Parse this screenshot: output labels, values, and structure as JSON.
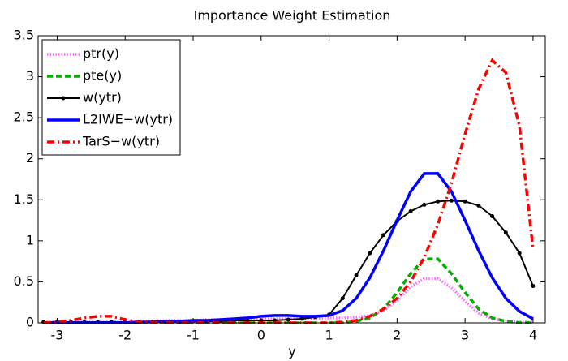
{
  "chart_data": {
    "type": "line",
    "title": "Importance Weight Estimation",
    "x_label": "y",
    "x": [
      -3.2,
      -3.0,
      -2.8,
      -2.6,
      -2.4,
      -2.2,
      -2.0,
      -1.8,
      -1.6,
      -1.4,
      -1.2,
      -1.0,
      -0.8,
      -0.6,
      -0.4,
      -0.2,
      0,
      0.2,
      0.4,
      0.6,
      0.8,
      1.0,
      1.2,
      1.4,
      1.6,
      1.8,
      2.0,
      2.2,
      2.4,
      2.6,
      2.8,
      3.0,
      3.2,
      3.4,
      3.6,
      3.8,
      4.0
    ],
    "series": [
      {
        "name": "ptr(y)",
        "color": "#ff66ff",
        "style": "dotted",
        "values": [
          0.01,
          0.01,
          0.01,
          0.01,
          0.01,
          0.01,
          0.02,
          0.02,
          0.02,
          0.03,
          0.03,
          0.03,
          0.04,
          0.04,
          0.04,
          0.05,
          0.05,
          0.05,
          0.05,
          0.05,
          0.05,
          0.06,
          0.06,
          0.07,
          0.09,
          0.15,
          0.27,
          0.44,
          0.54,
          0.54,
          0.43,
          0.26,
          0.12,
          0.05,
          0.02,
          0.01,
          0.01
        ]
      },
      {
        "name": "pte(y)",
        "color": "#00b000",
        "style": "dashed",
        "values": [
          0,
          0,
          0,
          0,
          0,
          0,
          0,
          0,
          0,
          0,
          0,
          0,
          0,
          0,
          0,
          0,
          0,
          0,
          0,
          0,
          0,
          0,
          0,
          0.02,
          0.06,
          0.17,
          0.37,
          0.6,
          0.78,
          0.78,
          0.6,
          0.37,
          0.17,
          0.06,
          0.02,
          0,
          0
        ]
      },
      {
        "name": "w(ytr)",
        "color": "#000000",
        "style": "solid-dots",
        "values": [
          0.01,
          0.01,
          0.01,
          0.01,
          0.01,
          0.01,
          0.01,
          0.01,
          0.01,
          0.01,
          0.01,
          0.02,
          0.02,
          0.02,
          0.03,
          0.03,
          0.03,
          0.03,
          0.04,
          0.05,
          0.07,
          0.1,
          0.3,
          0.58,
          0.85,
          1.07,
          1.24,
          1.36,
          1.44,
          1.48,
          1.49,
          1.48,
          1.43,
          1.3,
          1.1,
          0.85,
          0.45
        ]
      },
      {
        "name": "L2IWE−w(ytr)",
        "color": "#0000ff",
        "style": "solid",
        "values": [
          0,
          0,
          0,
          0,
          0,
          0,
          0,
          0.01,
          0.01,
          0.02,
          0.02,
          0.03,
          0.03,
          0.04,
          0.05,
          0.06,
          0.08,
          0.09,
          0.09,
          0.08,
          0.08,
          0.09,
          0.15,
          0.3,
          0.55,
          0.88,
          1.25,
          1.6,
          1.82,
          1.82,
          1.6,
          1.25,
          0.88,
          0.55,
          0.3,
          0.14,
          0.05
        ]
      },
      {
        "name": "TarS−w(ytr)",
        "color": "#ff0000",
        "style": "dashdot",
        "values": [
          0,
          0.01,
          0.03,
          0.06,
          0.08,
          0.08,
          0.04,
          0.01,
          0,
          0,
          0,
          0,
          0,
          0,
          0,
          0,
          0,
          0,
          0,
          0,
          0,
          0,
          0.01,
          0.03,
          0.08,
          0.17,
          0.3,
          0.5,
          0.8,
          1.2,
          1.7,
          2.3,
          2.85,
          3.2,
          3.05,
          2.4,
          0.9
        ]
      }
    ],
    "xlim": [
      -3.28,
      4.18
    ],
    "ylim": [
      0,
      3.5
    ],
    "xticks": [
      -3,
      -2,
      -1,
      0,
      1,
      2,
      3,
      4
    ],
    "yticks": [
      0,
      0.5,
      1,
      1.5,
      2,
      2.5,
      3,
      3.5
    ],
    "legend": "upper left"
  }
}
